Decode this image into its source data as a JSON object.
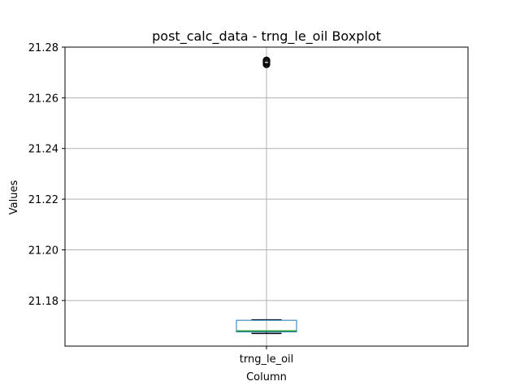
{
  "chart_data": {
    "type": "boxplot",
    "title": "post_calc_data - trng_le_oil Boxplot",
    "xlabel": "Column",
    "ylabel": "Values",
    "categories": [
      "trng_le_oil"
    ],
    "ylim": [
      21.162,
      21.28
    ],
    "yticks": [
      21.18,
      21.2,
      21.22,
      21.24,
      21.26,
      21.28
    ],
    "ytick_labels": [
      "21.18",
      "21.20",
      "21.22",
      "21.24",
      "21.26",
      "21.28"
    ],
    "grid": true,
    "boxes": [
      {
        "category": "trng_le_oil",
        "whisker_low": 21.167,
        "q1": 21.1676,
        "median": 21.168,
        "q3": 21.1722,
        "whisker_high": 21.1724,
        "outliers": [
          21.2732,
          21.2736,
          21.274,
          21.2744,
          21.2748
        ]
      }
    ],
    "colors": {
      "box": "#1f77b4",
      "median": "#2ca02c",
      "whisker": "#000000",
      "grid": "#b0b0b0",
      "axes": "#000000"
    }
  }
}
